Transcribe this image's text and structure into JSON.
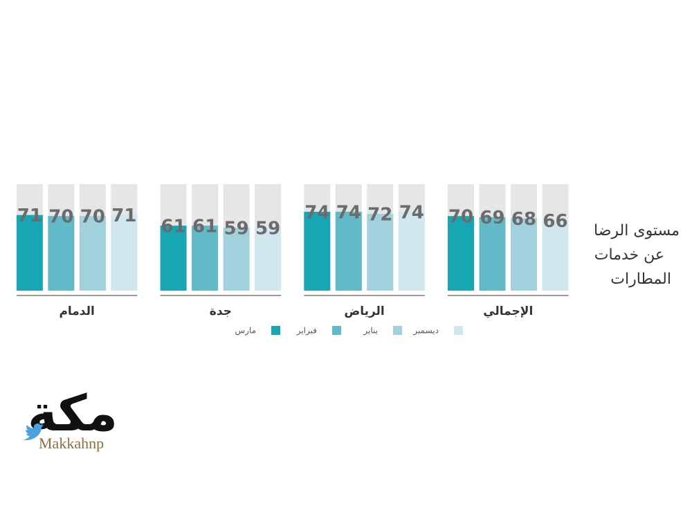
{
  "chart_data": {
    "type": "bar",
    "title": [
      "مستوى الرضا",
      "عن خدمات",
      "المطارات"
    ],
    "categories": [
      "الإجمالي",
      "الرياض",
      "جدة",
      "الدمام"
    ],
    "series": [
      {
        "name": "مارس",
        "color": "#17a6b4",
        "values": [
          70,
          74,
          61,
          71
        ]
      },
      {
        "name": "فبراير",
        "color": "#62b9c7",
        "values": [
          69,
          74,
          61,
          70
        ]
      },
      {
        "name": "يناير",
        "color": "#a0d1dc",
        "values": [
          68,
          72,
          59,
          70
        ]
      },
      {
        "name": "ديسمبر",
        "color": "#d0e7ed",
        "values": [
          66,
          74,
          59,
          71
        ]
      }
    ],
    "ylim": [
      0,
      100
    ]
  },
  "logo": {
    "text": "مكة",
    "handle": "Makkahnp"
  }
}
